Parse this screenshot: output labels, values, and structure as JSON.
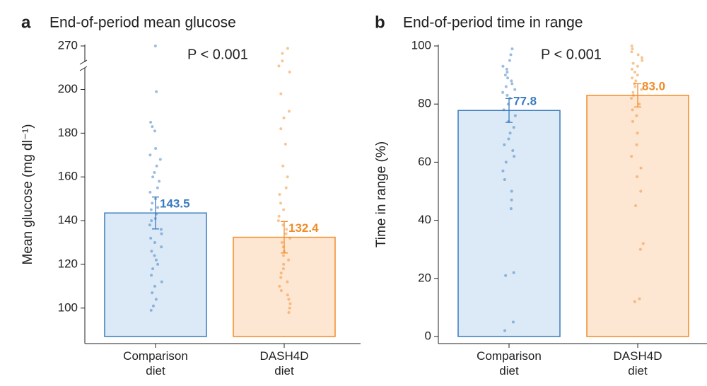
{
  "chart_data": [
    {
      "type": "bar",
      "panel": "a",
      "title": "End-of-period mean glucose",
      "y_label": "Mean glucose (mg dl⁻¹)",
      "annotation": "P < 0.001",
      "categories": [
        "Comparison\ndiet",
        "DASH4D\ndiet"
      ],
      "values": [
        143.5,
        132.4
      ],
      "errors": [
        7.3,
        7.2
      ],
      "colors": [
        "#3a7bbf",
        "#f28c28"
      ],
      "fills": [
        "#dce9f6",
        "#fde6d2"
      ],
      "points": [
        [
          270,
          199,
          185,
          183,
          181,
          173,
          170,
          168,
          165,
          162,
          160,
          158,
          155,
          153,
          150,
          148,
          146,
          145,
          143,
          141,
          140,
          138,
          136,
          134,
          132,
          130,
          128,
          126,
          124,
          122,
          120,
          118,
          115,
          112,
          110,
          107,
          104,
          101,
          99
        ],
        [
          265,
          255,
          240,
          230,
          218,
          198,
          190,
          187,
          182,
          175,
          165,
          160,
          155,
          152,
          148,
          145,
          142,
          140,
          138,
          136,
          134,
          132,
          130,
          128,
          126,
          124,
          122,
          120,
          118,
          116,
          114,
          112,
          110,
          108,
          106,
          104,
          102,
          100,
          98
        ]
      ],
      "ylim": [
        87,
        270
      ],
      "y_break": 205,
      "yticks": [
        100,
        120,
        140,
        160,
        180,
        200,
        270
      ]
    },
    {
      "type": "bar",
      "panel": "b",
      "title": "End-of-period time in range",
      "y_label": "Time in range (%)",
      "annotation": "P < 0.001",
      "categories": [
        "Comparison\ndiet",
        "DASH4D\ndiet"
      ],
      "values": [
        77.8,
        83.0
      ],
      "value_labels": [
        "77.8",
        "83.0"
      ],
      "errors": [
        4.1,
        4.0
      ],
      "colors": [
        "#3a7bbf",
        "#f28c28"
      ],
      "fills": [
        "#dce9f6",
        "#fde6d2"
      ],
      "points": [
        [
          99,
          97,
          95,
          93,
          92,
          91,
          90,
          89,
          88,
          87,
          86,
          85,
          84,
          83,
          82,
          80,
          78,
          76,
          74,
          72,
          70,
          68,
          66,
          64,
          62,
          60,
          57,
          54,
          50,
          47,
          44,
          22,
          21,
          5,
          2
        ],
        [
          100,
          99,
          98,
          97,
          96,
          95,
          94,
          93,
          92,
          91,
          90,
          89,
          88,
          87,
          86,
          85,
          84,
          83,
          82,
          80,
          78,
          76,
          74,
          70,
          66,
          62,
          58,
          55,
          50,
          45,
          32,
          30,
          13,
          12
        ]
      ],
      "ylim": [
        0,
        100
      ],
      "yticks": [
        0,
        20,
        40,
        60,
        80,
        100
      ]
    }
  ]
}
